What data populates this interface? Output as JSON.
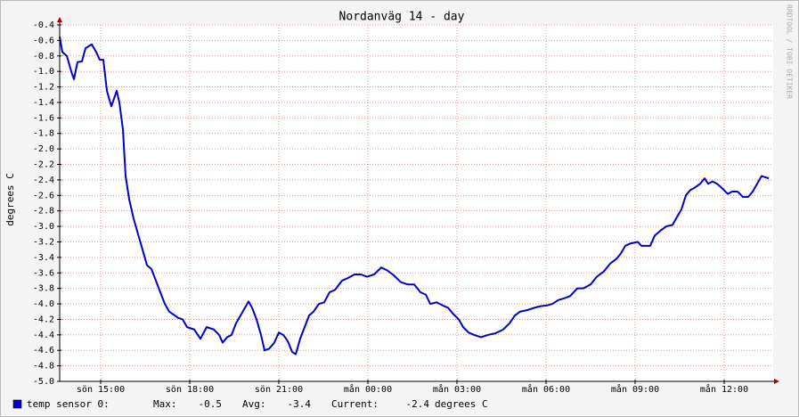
{
  "chart_data": {
    "type": "line",
    "title": "Nordanväg 14 - day",
    "y_label": "degrees C",
    "watermark": "RRDTOOL / TOBI OETIKER",
    "xlim": [
      13.62,
      37.65
    ],
    "xticks": [
      {
        "value": 15,
        "label": "sön 15:00"
      },
      {
        "value": 18,
        "label": "sön 18:00"
      },
      {
        "value": 21,
        "label": "sön 21:00"
      },
      {
        "value": 24,
        "label": "mån 00:00"
      },
      {
        "value": 27,
        "label": "mån 03:00"
      },
      {
        "value": 30,
        "label": "mån 06:00"
      },
      {
        "value": 33,
        "label": "mån 09:00"
      },
      {
        "value": 36,
        "label": "mån 12:00"
      }
    ],
    "ylim": [
      -5.0,
      -0.4
    ],
    "yticks": [
      -0.4,
      -0.6,
      -0.8,
      {
        "value": -1.0,
        "label": "-1.0"
      },
      -1.2,
      -1.4,
      -1.6,
      -1.8,
      {
        "value": -2.0,
        "label": "-2.0"
      },
      -2.2,
      -2.4,
      -2.6,
      -2.8,
      {
        "value": -3.0,
        "label": "-3.0"
      },
      -3.2,
      -3.4,
      -3.6,
      -3.8,
      {
        "value": -4.0,
        "label": "-4.0"
      },
      -4.2,
      -4.4,
      -4.6,
      -4.8,
      {
        "value": -5.0,
        "label": "-5.0"
      }
    ],
    "grid": true,
    "x": [
      13.62,
      13.71,
      13.86,
      14.01,
      14.1,
      14.22,
      14.37,
      14.49,
      14.7,
      14.85,
      14.97,
      15.09,
      15.21,
      15.36,
      15.54,
      15.63,
      15.75,
      15.84,
      15.96,
      16.11,
      16.26,
      16.41,
      16.56,
      16.71,
      16.86,
      17.01,
      17.16,
      17.31,
      17.61,
      17.76,
      17.91,
      18.15,
      18.36,
      18.57,
      18.81,
      18.99,
      19.11,
      19.26,
      19.41,
      19.56,
      19.71,
      19.86,
      19.98,
      20.1,
      20.25,
      20.4,
      20.52,
      20.67,
      20.85,
      21,
      21.15,
      21.3,
      21.45,
      21.57,
      21.72,
      21.87,
      22.02,
      22.17,
      22.35,
      22.53,
      22.71,
      22.89,
      23.13,
      23.31,
      23.55,
      23.76,
      23.97,
      24.21,
      24.45,
      24.66,
      24.87,
      25.11,
      25.35,
      25.56,
      25.77,
      25.95,
      26.1,
      26.31,
      26.52,
      26.7,
      26.85,
      27.06,
      27.21,
      27.39,
      27.57,
      27.81,
      28.05,
      28.29,
      28.56,
      28.77,
      28.95,
      29.13,
      29.37,
      29.61,
      29.82,
      30.03,
      30.21,
      30.42,
      30.6,
      30.81,
      31.05,
      31.26,
      31.5,
      31.71,
      31.95,
      32.16,
      32.37,
      32.52,
      32.67,
      32.85,
      33.09,
      33.21,
      33.51,
      33.66,
      33.87,
      34.05,
      34.26,
      34.41,
      34.56,
      34.71,
      34.86,
      35.01,
      35.19,
      35.34,
      35.46,
      35.61,
      35.76,
      35.91,
      36.12,
      36.27,
      36.45,
      36.63,
      36.81,
      36.96,
      37.11,
      37.26,
      37.5
    ],
    "series": [
      {
        "name": "temp sensor 0:",
        "color": "#0000cc",
        "values": [
          -0.55,
          -0.75,
          -0.8,
          -1.0,
          -1.1,
          -0.88,
          -0.87,
          -0.7,
          -0.65,
          -0.75,
          -0.85,
          -0.85,
          -1.25,
          -1.45,
          -1.25,
          -1.4,
          -1.75,
          -2.35,
          -2.65,
          -2.9,
          -3.1,
          -3.3,
          -3.5,
          -3.55,
          -3.7,
          -3.85,
          -4.0,
          -4.1,
          -4.18,
          -4.2,
          -4.3,
          -4.33,
          -4.45,
          -4.3,
          -4.33,
          -4.4,
          -4.5,
          -4.43,
          -4.4,
          -4.25,
          -4.15,
          -4.05,
          -3.97,
          -4.05,
          -4.2,
          -4.4,
          -4.6,
          -4.58,
          -4.5,
          -4.37,
          -4.4,
          -4.48,
          -4.62,
          -4.65,
          -4.45,
          -4.3,
          -4.15,
          -4.1,
          -4.0,
          -3.98,
          -3.85,
          -3.82,
          -3.7,
          -3.67,
          -3.62,
          -3.62,
          -3.65,
          -3.62,
          -3.53,
          -3.57,
          -3.63,
          -3.72,
          -3.75,
          -3.75,
          -3.85,
          -3.88,
          -4.0,
          -3.98,
          -4.02,
          -4.05,
          -4.12,
          -4.2,
          -4.3,
          -4.37,
          -4.4,
          -4.43,
          -4.4,
          -4.38,
          -4.33,
          -4.25,
          -4.15,
          -4.1,
          -4.08,
          -4.05,
          -4.03,
          -4.02,
          -4.0,
          -3.95,
          -3.93,
          -3.9,
          -3.8,
          -3.8,
          -3.75,
          -3.65,
          -3.58,
          -3.48,
          -3.42,
          -3.35,
          -3.25,
          -3.22,
          -3.2,
          -3.25,
          -3.25,
          -3.12,
          -3.05,
          -3.0,
          -2.98,
          -2.88,
          -2.78,
          -2.6,
          -2.53,
          -2.5,
          -2.45,
          -2.38,
          -2.45,
          -2.42,
          -2.45,
          -2.5,
          -2.58,
          -2.55,
          -2.55,
          -2.62,
          -2.62,
          -2.55,
          -2.45,
          -2.35,
          -2.38
        ]
      }
    ],
    "stats": [
      {
        "label": "Max:",
        "value": -0.5
      },
      {
        "label": "Avg:",
        "value": -3.4
      },
      {
        "label": "Current:",
        "value": -2.4
      }
    ],
    "unit": "degrees C"
  }
}
